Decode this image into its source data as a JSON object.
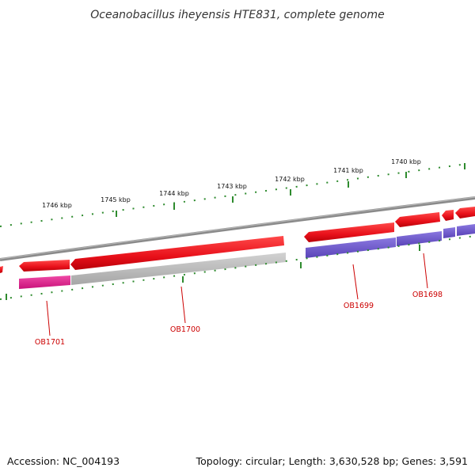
{
  "title": "Oceanobacillus iheyensis HTE831, complete genome",
  "footer": {
    "accession": "Accession: NC_004193",
    "summary": "Topology: circular; Length: 3,630,528 bp; Genes: 3,591"
  },
  "kbp_ticks": [
    "1746 kbp",
    "1745 kbp",
    "1744 kbp",
    "1743 kbp",
    "1742 kbp",
    "1741 kbp",
    "1740 kbp"
  ],
  "gene_labels": [
    "OB1701",
    "OB1700",
    "OB1699",
    "OB1698"
  ],
  "colors": {
    "backbone": "#8a8a8a",
    "ruler_ticks": "#2e8b2e",
    "forward_genes": "#e8101a",
    "cog_magenta": "#e0208a",
    "cog_gray": "#b8b8b8",
    "cog_blue": "#6a55c8",
    "gene_label": "#cc0000"
  }
}
